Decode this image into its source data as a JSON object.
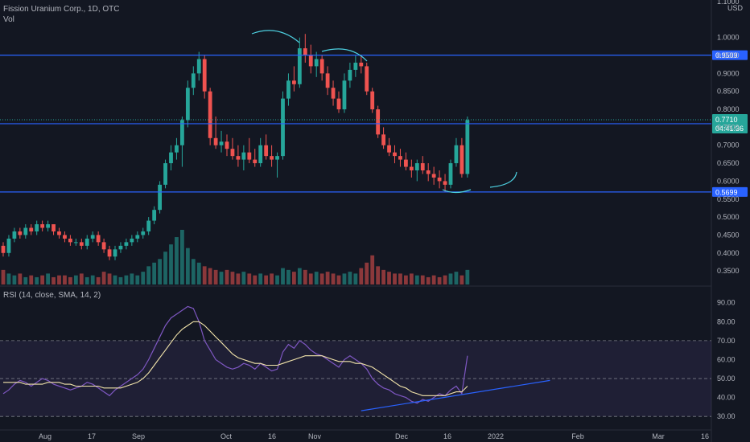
{
  "header": {
    "title": "Fission Uranium Corp., 1D, OTC",
    "vol_label": "Vol",
    "rsi_label": "RSI (14, close, SMA, 14, 2)"
  },
  "colors": {
    "background": "#131722",
    "grid": "#1e2230",
    "up": "#26a69a",
    "down": "#ef5350",
    "level_line": "#2962ff",
    "rsi_line": "#7e57c2",
    "rsi_ma": "#f3e5ab",
    "rsi_band": "#7e57c2",
    "text": "#b2b5be",
    "price_tag": "#26a69a",
    "drawing": "#4dd0e1"
  },
  "chart_data": [
    {
      "type": "candlestick",
      "currency_label": "USD",
      "price_axis_ticks": [
        "1.1000",
        "1.0000",
        "0.9500",
        "0.9000",
        "0.8500",
        "0.8000",
        "0.7500",
        "0.7000",
        "0.6500",
        "0.6000",
        "0.5500",
        "0.5000",
        "0.4500",
        "0.4000",
        "0.3500"
      ],
      "ylim": [
        0.31,
        1.1
      ],
      "x_axis_labels": [
        "Aug",
        "17",
        "Sep",
        "Oct",
        "16",
        "Nov",
        "Dec",
        "16",
        "2022",
        "Feb",
        "Mar",
        "16"
      ],
      "horizontal_levels": [
        {
          "label": "0.9509",
          "value": 0.9509
        },
        {
          "label": "0.7600",
          "value": 0.76
        },
        {
          "label": "0.5699",
          "value": 0.5699
        }
      ],
      "last_price": {
        "value": "0.7710",
        "countdown": "04:41:36"
      },
      "candles": [
        [
          0.42,
          0.43,
          0.39,
          0.4
        ],
        [
          0.4,
          0.45,
          0.39,
          0.44
        ],
        [
          0.44,
          0.47,
          0.43,
          0.46
        ],
        [
          0.46,
          0.47,
          0.44,
          0.45
        ],
        [
          0.45,
          0.48,
          0.44,
          0.47
        ],
        [
          0.47,
          0.48,
          0.45,
          0.46
        ],
        [
          0.46,
          0.49,
          0.45,
          0.48
        ],
        [
          0.48,
          0.49,
          0.46,
          0.47
        ],
        [
          0.47,
          0.49,
          0.46,
          0.48
        ],
        [
          0.48,
          0.48,
          0.45,
          0.46
        ],
        [
          0.46,
          0.47,
          0.44,
          0.45
        ],
        [
          0.45,
          0.46,
          0.43,
          0.44
        ],
        [
          0.44,
          0.45,
          0.42,
          0.43
        ],
        [
          0.43,
          0.44,
          0.42,
          0.43
        ],
        [
          0.43,
          0.44,
          0.41,
          0.42
        ],
        [
          0.42,
          0.45,
          0.41,
          0.44
        ],
        [
          0.44,
          0.46,
          0.43,
          0.45
        ],
        [
          0.45,
          0.46,
          0.42,
          0.43
        ],
        [
          0.43,
          0.44,
          0.4,
          0.41
        ],
        [
          0.41,
          0.42,
          0.38,
          0.39
        ],
        [
          0.39,
          0.42,
          0.38,
          0.41
        ],
        [
          0.41,
          0.43,
          0.4,
          0.42
        ],
        [
          0.42,
          0.44,
          0.41,
          0.43
        ],
        [
          0.43,
          0.45,
          0.42,
          0.44
        ],
        [
          0.44,
          0.46,
          0.43,
          0.45
        ],
        [
          0.45,
          0.47,
          0.44,
          0.46
        ],
        [
          0.46,
          0.5,
          0.45,
          0.49
        ],
        [
          0.49,
          0.53,
          0.48,
          0.52
        ],
        [
          0.52,
          0.6,
          0.51,
          0.59
        ],
        [
          0.59,
          0.66,
          0.58,
          0.65
        ],
        [
          0.65,
          0.7,
          0.63,
          0.68
        ],
        [
          0.68,
          0.72,
          0.66,
          0.7
        ],
        [
          0.7,
          0.78,
          0.64,
          0.77
        ],
        [
          0.77,
          0.88,
          0.75,
          0.86
        ],
        [
          0.86,
          0.92,
          0.84,
          0.9
        ],
        [
          0.9,
          0.96,
          0.88,
          0.94
        ],
        [
          0.94,
          0.95,
          0.83,
          0.85
        ],
        [
          0.85,
          0.86,
          0.7,
          0.72
        ],
        [
          0.72,
          0.78,
          0.69,
          0.7
        ],
        [
          0.7,
          0.74,
          0.68,
          0.71
        ],
        [
          0.71,
          0.73,
          0.67,
          0.69
        ],
        [
          0.69,
          0.72,
          0.66,
          0.67
        ],
        [
          0.67,
          0.7,
          0.64,
          0.66
        ],
        [
          0.66,
          0.7,
          0.63,
          0.68
        ],
        [
          0.68,
          0.72,
          0.65,
          0.66
        ],
        [
          0.66,
          0.69,
          0.64,
          0.65
        ],
        [
          0.65,
          0.72,
          0.64,
          0.7
        ],
        [
          0.7,
          0.73,
          0.66,
          0.67
        ],
        [
          0.67,
          0.7,
          0.64,
          0.66
        ],
        [
          0.66,
          0.68,
          0.61,
          0.67
        ],
        [
          0.67,
          0.85,
          0.66,
          0.83
        ],
        [
          0.83,
          0.9,
          0.81,
          0.88
        ],
        [
          0.88,
          0.92,
          0.85,
          0.87
        ],
        [
          0.87,
          1.0,
          0.86,
          0.97
        ],
        [
          0.97,
          1.01,
          0.93,
          0.95
        ],
        [
          0.95,
          0.98,
          0.9,
          0.92
        ],
        [
          0.92,
          0.96,
          0.89,
          0.94
        ],
        [
          0.94,
          0.95,
          0.88,
          0.9
        ],
        [
          0.9,
          0.92,
          0.84,
          0.86
        ],
        [
          0.86,
          0.88,
          0.81,
          0.83
        ],
        [
          0.83,
          0.85,
          0.79,
          0.8
        ],
        [
          0.8,
          0.9,
          0.79,
          0.88
        ],
        [
          0.88,
          0.93,
          0.86,
          0.91
        ],
        [
          0.91,
          0.95,
          0.89,
          0.93
        ],
        [
          0.93,
          0.95,
          0.9,
          0.92
        ],
        [
          0.92,
          0.93,
          0.84,
          0.85
        ],
        [
          0.85,
          0.86,
          0.79,
          0.8
        ],
        [
          0.8,
          0.81,
          0.72,
          0.73
        ],
        [
          0.73,
          0.75,
          0.69,
          0.7
        ],
        [
          0.7,
          0.72,
          0.67,
          0.68
        ],
        [
          0.68,
          0.7,
          0.65,
          0.67
        ],
        [
          0.67,
          0.69,
          0.64,
          0.66
        ],
        [
          0.66,
          0.68,
          0.63,
          0.64
        ],
        [
          0.64,
          0.66,
          0.61,
          0.63
        ],
        [
          0.63,
          0.66,
          0.6,
          0.65
        ],
        [
          0.65,
          0.67,
          0.62,
          0.63
        ],
        [
          0.63,
          0.65,
          0.6,
          0.62
        ],
        [
          0.62,
          0.64,
          0.59,
          0.61
        ],
        [
          0.61,
          0.63,
          0.58,
          0.6
        ],
        [
          0.6,
          0.62,
          0.57,
          0.59
        ],
        [
          0.59,
          0.66,
          0.58,
          0.65
        ],
        [
          0.65,
          0.72,
          0.64,
          0.7
        ],
        [
          0.7,
          0.72,
          0.61,
          0.62
        ],
        [
          0.62,
          0.78,
          0.61,
          0.77
        ]
      ],
      "volume": [
        8,
        6,
        5,
        6,
        4,
        5,
        4,
        5,
        6,
        4,
        5,
        5,
        4,
        5,
        6,
        4,
        5,
        4,
        7,
        6,
        5,
        4,
        5,
        6,
        5,
        7,
        10,
        12,
        14,
        18,
        22,
        26,
        30,
        20,
        14,
        12,
        10,
        9,
        8,
        7,
        8,
        7,
        6,
        7,
        6,
        5,
        6,
        5,
        6,
        5,
        9,
        8,
        7,
        9,
        8,
        6,
        7,
        6,
        7,
        6,
        5,
        6,
        7,
        6,
        9,
        12,
        16,
        10,
        8,
        7,
        6,
        6,
        5,
        6,
        5,
        5,
        4,
        5,
        4,
        5,
        6,
        7,
        5,
        8
      ]
    },
    {
      "type": "line",
      "name": "RSI",
      "ylim": [
        25,
        92
      ],
      "ticks": [
        "90.00",
        "80.00",
        "70.00",
        "60.00",
        "50.00",
        "40.00",
        "30.00"
      ],
      "bands": {
        "upper": 70,
        "middle": 50,
        "lower": 30
      },
      "rsi": [
        42,
        44,
        47,
        49,
        48,
        46,
        48,
        50,
        49,
        47,
        46,
        45,
        44,
        45,
        46,
        48,
        47,
        45,
        43,
        41,
        44,
        46,
        48,
        50,
        52,
        55,
        60,
        66,
        72,
        78,
        82,
        84,
        86,
        88,
        87,
        80,
        70,
        65,
        60,
        58,
        56,
        55,
        56,
        58,
        57,
        55,
        58,
        56,
        54,
        55,
        64,
        68,
        66,
        70,
        68,
        65,
        63,
        62,
        60,
        58,
        56,
        60,
        62,
        60,
        58,
        55,
        50,
        47,
        45,
        44,
        42,
        41,
        40,
        38,
        37,
        39,
        38,
        40,
        42,
        41,
        44,
        46,
        42,
        62
      ],
      "rsi_ma": [
        48,
        48,
        48,
        48,
        47,
        47,
        47,
        47,
        48,
        48,
        48,
        47,
        47,
        46,
        46,
        46,
        46,
        46,
        45,
        45,
        45,
        45,
        46,
        47,
        48,
        50,
        53,
        57,
        61,
        65,
        69,
        73,
        76,
        78,
        80,
        80,
        78,
        75,
        72,
        69,
        66,
        63,
        61,
        60,
        59,
        58,
        58,
        57,
        57,
        57,
        58,
        59,
        60,
        61,
        62,
        62,
        62,
        62,
        61,
        60,
        59,
        59,
        59,
        58,
        58,
        57,
        56,
        54,
        52,
        50,
        48,
        46,
        45,
        43,
        42,
        41,
        41,
        41,
        41,
        41,
        42,
        43,
        43,
        46
      ],
      "trendline": {
        "from": [
          64,
          33
        ],
        "to": [
          92,
          49
        ]
      }
    }
  ]
}
